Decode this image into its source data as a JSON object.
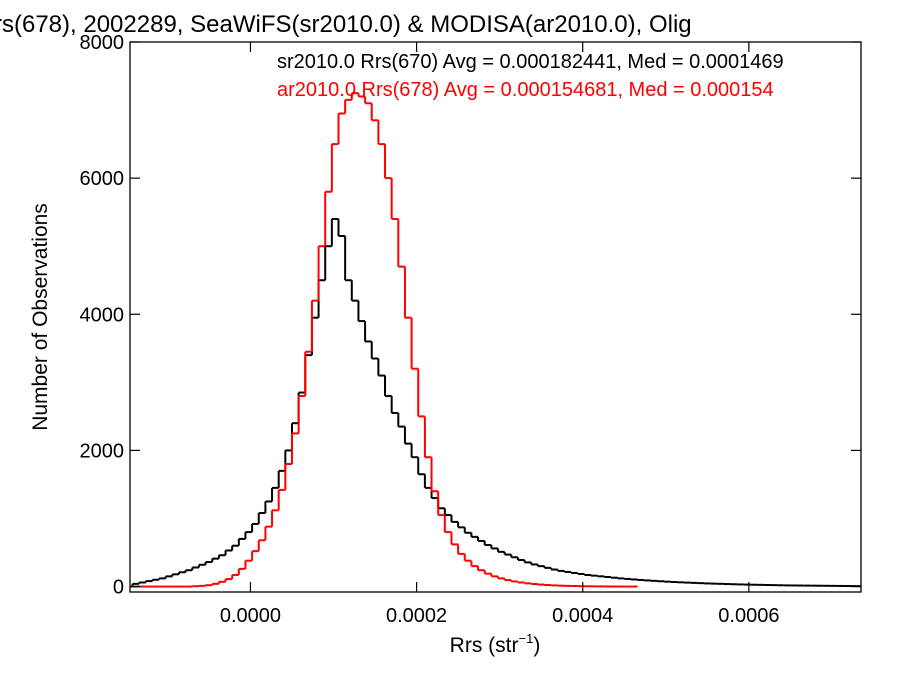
{
  "chart_data": {
    "type": "histogram",
    "title": "rs(678), 2002289, SeaWiFS(sr2010.0) & MODISA(ar2010.0), Olig",
    "xlabel_main": "Rrs (str",
    "xlabel_sup": "−1",
    "xlabel_end": ")",
    "ylabel": "Number of Observations",
    "xlim": [
      -0.000145,
      0.000735
    ],
    "ylim": [
      -80,
      8000
    ],
    "x_ticks": [
      {
        "value": 0.0,
        "label": "0.0000"
      },
      {
        "value": 0.0002,
        "label": "0.0002"
      },
      {
        "value": 0.0004,
        "label": "0.0004"
      },
      {
        "value": 0.0006,
        "label": "0.0006"
      }
    ],
    "y_ticks": [
      {
        "value": 0,
        "label": "0"
      },
      {
        "value": 2000,
        "label": "2000"
      },
      {
        "value": 4000,
        "label": "4000"
      },
      {
        "value": 6000,
        "label": "6000"
      },
      {
        "value": 8000,
        "label": "8000"
      }
    ],
    "bin_width": 4e-06,
    "series": [
      {
        "name": "sr2010.0 Rrs(670)",
        "legend": "sr2010.0 Rrs(670) Avg = 0.000182441, Med = 0.0001469",
        "color": "#000000",
        "x": [
          -0.00015,
          -0.000142,
          -0.000134,
          -0.000126,
          -0.000118,
          -0.00011,
          -0.000102,
          -9.4e-05,
          -8.6e-05,
          -7.8e-05,
          -7e-05,
          -6.2e-05,
          -5.4e-05,
          -4.6e-05,
          -3.8e-05,
          -3e-05,
          -2.2e-05,
          -1.4e-05,
          -6e-06,
          2e-06,
          1e-05,
          1.8e-05,
          2.6e-05,
          3.4e-05,
          4.2e-05,
          5e-05,
          5.8e-05,
          6.6e-05,
          7.4e-05,
          8.2e-05,
          9e-05,
          9.8e-05,
          0.000106,
          0.000114,
          0.000122,
          0.00013,
          0.000138,
          0.000146,
          0.000154,
          0.000162,
          0.00017,
          0.000178,
          0.000186,
          0.000194,
          0.000202,
          0.00021,
          0.000218,
          0.000226,
          0.000234,
          0.000242,
          0.00025,
          0.000258,
          0.000266,
          0.000274,
          0.000282,
          0.00029,
          0.000298,
          0.000306,
          0.000314,
          0.000322,
          0.00033,
          0.000338,
          0.000346,
          0.000354,
          0.000362,
          0.00037,
          0.000378,
          0.000386,
          0.000394,
          0.000402,
          0.00041,
          0.000418,
          0.000426,
          0.000434,
          0.000442,
          0.00045,
          0.000458,
          0.000466,
          0.000474,
          0.000482,
          0.00049,
          0.000498,
          0.000506,
          0.000514,
          0.000522,
          0.00053,
          0.000538,
          0.000546,
          0.000554,
          0.000562,
          0.00057,
          0.000578,
          0.000586,
          0.000594,
          0.000602,
          0.00061,
          0.000618,
          0.000626,
          0.000634,
          0.000642,
          0.00065,
          0.000658,
          0.000666,
          0.000674,
          0.000682,
          0.00069,
          0.000698,
          0.000706,
          0.000714,
          0.000722,
          0.00073,
          0.000738
        ],
        "y": [
          0,
          40,
          60,
          80,
          100,
          120,
          150,
          180,
          210,
          240,
          280,
          320,
          360,
          410,
          460,
          530,
          600,
          700,
          800,
          920,
          1080,
          1250,
          1450,
          1700,
          2000,
          2400,
          2850,
          3400,
          3950,
          4500,
          5000,
          5400,
          5150,
          4500,
          4200,
          3900,
          3600,
          3350,
          3100,
          2800,
          2550,
          2350,
          2100,
          1900,
          1650,
          1450,
          1300,
          1150,
          1050,
          950,
          870,
          790,
          730,
          670,
          610,
          560,
          510,
          470,
          430,
          390,
          355,
          325,
          300,
          275,
          250,
          230,
          215,
          200,
          185,
          170,
          160,
          150,
          140,
          130,
          120,
          112,
          104,
          97,
          90,
          84,
          78,
          72,
          67,
          62,
          58,
          54,
          50,
          46,
          43,
          40,
          37,
          34,
          31,
          29,
          27,
          25,
          23,
          21,
          19,
          17,
          16,
          15,
          14,
          13,
          12,
          11,
          10,
          9,
          8,
          7,
          6
        ]
      },
      {
        "name": "ar2010.0 Rrs(678)",
        "legend": "ar2010.0 Rrs(678) Avg = 0.000154681, Med = 0.000154",
        "color": "#ff0000",
        "x": [
          -0.00015,
          -0.000142,
          -0.000134,
          -0.000126,
          -0.000118,
          -0.00011,
          -0.000102,
          -9.4e-05,
          -8.6e-05,
          -7.8e-05,
          -7e-05,
          -6.2e-05,
          -5.4e-05,
          -4.6e-05,
          -3.8e-05,
          -3e-05,
          -2.2e-05,
          -1.4e-05,
          -6e-06,
          2e-06,
          1e-05,
          1.8e-05,
          2.6e-05,
          3.4e-05,
          4.2e-05,
          5e-05,
          5.8e-05,
          6.6e-05,
          7.4e-05,
          8.2e-05,
          9e-05,
          9.8e-05,
          0.000106,
          0.000114,
          0.000122,
          0.00013,
          0.000138,
          0.000146,
          0.000154,
          0.000162,
          0.00017,
          0.000178,
          0.000186,
          0.000194,
          0.000202,
          0.00021,
          0.000218,
          0.000226,
          0.000234,
          0.000242,
          0.00025,
          0.000258,
          0.000266,
          0.000274,
          0.000282,
          0.00029,
          0.000298,
          0.000306,
          0.000314,
          0.000322,
          0.00033,
          0.000338,
          0.000346,
          0.000354,
          0.000362,
          0.00037,
          0.000378,
          0.000386,
          0.000394,
          0.000402,
          0.00041,
          0.000418,
          0.000426,
          0.000434,
          0.000442,
          0.00045,
          0.000458
        ],
        "y": [
          0,
          0,
          0,
          0,
          0,
          0,
          0,
          0,
          0,
          0,
          5,
          10,
          20,
          40,
          70,
          110,
          170,
          260,
          380,
          520,
          680,
          880,
          1120,
          1420,
          1800,
          2250,
          2800,
          3450,
          4200,
          5000,
          5800,
          6500,
          6950,
          7150,
          7250,
          7200,
          7100,
          6850,
          6500,
          6000,
          5400,
          4700,
          3950,
          3200,
          2500,
          1900,
          1400,
          1050,
          800,
          620,
          480,
          380,
          300,
          240,
          190,
          150,
          120,
          95,
          75,
          60,
          47,
          37,
          29,
          22,
          17,
          13,
          10,
          8,
          6,
          4,
          3,
          2,
          1,
          1,
          0,
          0,
          0
        ]
      }
    ],
    "grid": false,
    "legend_placement": "top"
  }
}
